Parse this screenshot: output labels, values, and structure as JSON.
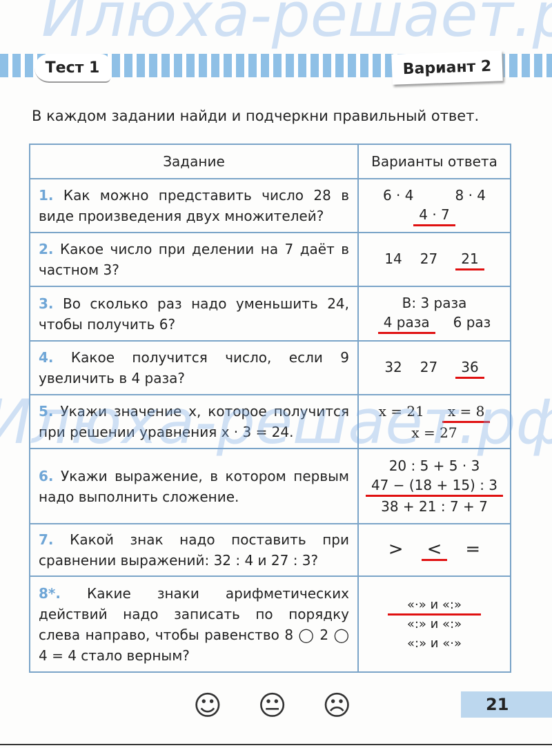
{
  "header": {
    "test_label": "Тест 1",
    "variant_label": "Вариант 2"
  },
  "instruction": "В каждом задании найди и подчеркни правильный ответ.",
  "table": {
    "col_task": "Задание",
    "col_answers": "Варианты ответа",
    "rows": [
      {
        "num": "1.",
        "text": "Как можно представить число 28 в виде произведения двух множителей?",
        "options": [
          "6 · 4",
          "8 · 4",
          "4 · 7"
        ],
        "underlined": "4 · 7"
      },
      {
        "num": "2.",
        "text": "Какое число при делении на 7 даёт в частном 3?",
        "options": [
          "14",
          "27",
          "21"
        ],
        "underlined": "21"
      },
      {
        "num": "3.",
        "text": "Во сколько раз надо уменьшить 24, чтобы получить 6?",
        "options": [
          "В: 3 раза",
          "4 раза",
          "6 раз"
        ],
        "underlined": "4 раза"
      },
      {
        "num": "4.",
        "text": "Какое получится число, если 9 увеличить в 4 раза?",
        "options": [
          "32",
          "27",
          "36"
        ],
        "underlined": "36"
      },
      {
        "num": "5.",
        "text": "Укажи значение x, которое получится при решении уравнения x · 3 = 24.",
        "options": [
          "x = 21",
          "x = 8",
          "x = 27"
        ],
        "underlined": "x = 8"
      },
      {
        "num": "6.",
        "text": "Укажи выражение, в котором первым надо выполнить сложение.",
        "options": [
          "20 : 5 + 5 · 3",
          "47 − (18 + 15) : 3",
          "38 + 21 : 7 + 7"
        ],
        "underlined": "47 − (18 + 15) : 3"
      },
      {
        "num": "7.",
        "text": "Какой знак надо поставить при сравнении выражений: 32 : 4 и 27 : 3?",
        "options": [
          ">",
          "<",
          "="
        ],
        "underlined": "<"
      },
      {
        "num": "8*.",
        "text": "Какие знаки арифметических действий надо записать по порядку слева направо, чтобы равенство 8 ◯ 2 ◯ 4 = 4 стало верным?",
        "options": [
          "«·» и «:»",
          "«:» и «:»",
          "«:» и «·»"
        ],
        "underlined": "«·» и «:»"
      }
    ]
  },
  "smileys": [
    "☺",
    "😐",
    "☹"
  ],
  "page_number": "21",
  "watermark": "Илюха-решает.рф",
  "colors": {
    "accent_blue": "#8fc0e6",
    "underline_red": "#e01010"
  }
}
